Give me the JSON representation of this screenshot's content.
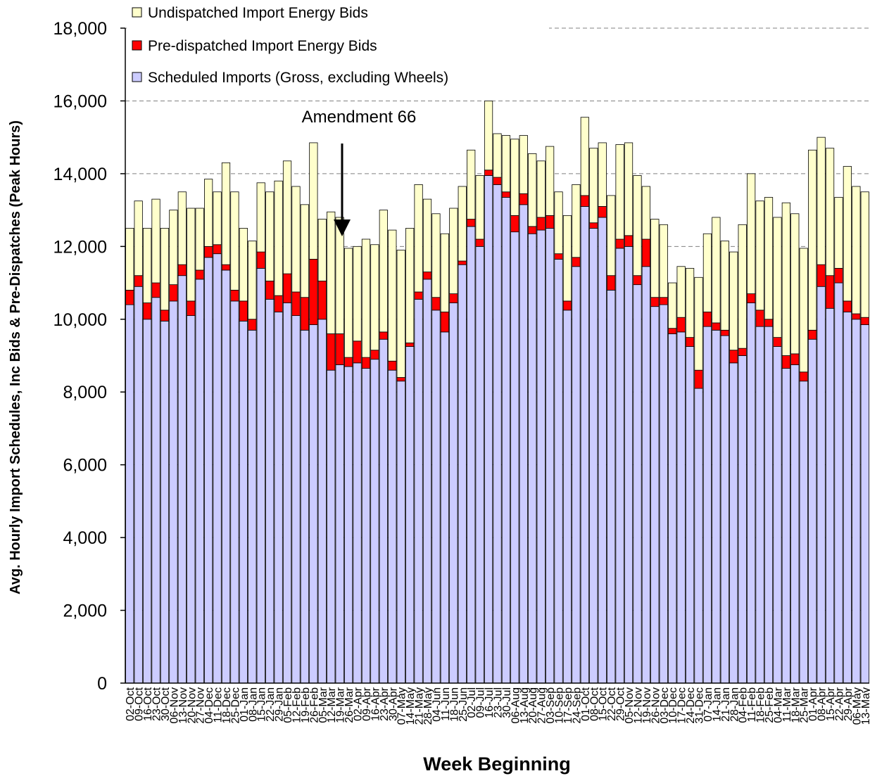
{
  "chart_data": {
    "type": "stacked-bar",
    "y_label": "Avg. Hourly Import Schedules, Inc Bids & Pre-Dispatches (Peak Hours)",
    "x_label": "Week Beginning",
    "annotation": "Amendment 66",
    "categories": [
      "02-Oct",
      "09-Oct",
      "16-Oct",
      "23-Oct",
      "30-Oct",
      "06-Nov",
      "13-Nov",
      "20-Nov",
      "27-Nov",
      "04-Dec",
      "11-Dec",
      "18-Dec",
      "25-Dec",
      "01-Jan",
      "08-Jan",
      "15-Jan",
      "22-Jan",
      "29-Jan",
      "05-Feb",
      "12-Feb",
      "19-Feb",
      "26-Feb",
      "05-Mar",
      "12-Mar",
      "19-Mar",
      "26-Mar",
      "02-Apr",
      "09-Apr",
      "16-Apr",
      "23-Apr",
      "30-Apr",
      "07-May",
      "14-May",
      "21-May",
      "28-May",
      "04-Jun",
      "11-Jun",
      "18-Jun",
      "25-Jun",
      "02-Jul",
      "09-Jul",
      "16-Jul",
      "23-Jul",
      "30-Jul",
      "06-Aug",
      "13-Aug",
      "20-Aug",
      "27-Aug",
      "03-Sep",
      "10-Sep",
      "17-Sep",
      "24-Sep",
      "01-Oct",
      "08-Oct",
      "15-Oct",
      "22-Oct",
      "29-Oct",
      "05-Nov",
      "12-Nov",
      "19-Nov",
      "26-Nov",
      "03-Dec",
      "10-Dec",
      "17-Dec",
      "24-Dec",
      "31-Dec",
      "07-Jan",
      "14-Jan",
      "21-Jan",
      "28-Jan",
      "04-Feb",
      "11-Feb",
      "18-Feb",
      "25-Feb",
      "04-Mar",
      "11-Mar",
      "18-Mar",
      "25-Mar",
      "01-Apr",
      "08-Apr",
      "15-Apr",
      "22-Apr",
      "29-Apr",
      "06-May",
      "13-May"
    ],
    "series": [
      {
        "name": "Scheduled Imports (Gross, excluding Wheels)",
        "color": "#ccccff",
        "values": [
          10400,
          10900,
          10000,
          10600,
          9950,
          10500,
          11200,
          10100,
          11100,
          11700,
          11800,
          11350,
          10500,
          9950,
          9700,
          11400,
          10550,
          10200,
          10450,
          10100,
          9700,
          9850,
          10000,
          8600,
          8750,
          8700,
          8800,
          8650,
          8900,
          9450,
          8600,
          8300,
          9250,
          10550,
          11100,
          10250,
          9650,
          10450,
          11500,
          12550,
          12000,
          13950,
          13700,
          13350,
          12400,
          13150,
          12350,
          12450,
          12500,
          11650,
          10250,
          11450,
          13100,
          12500,
          12800,
          10800,
          11950,
          12000,
          10950,
          11450,
          10350,
          10400,
          9600,
          9650,
          9250,
          8100,
          9800,
          9700,
          9550,
          8800,
          9000,
          10450,
          9800,
          9800,
          9250,
          8650,
          8750,
          8300,
          9450,
          10900,
          10300,
          11000,
          10200,
          10000,
          9850
        ]
      },
      {
        "name": "Pre-dispatched Import Energy Bids",
        "color": "#ff0000",
        "values": [
          400,
          300,
          450,
          400,
          300,
          450,
          300,
          400,
          250,
          300,
          250,
          150,
          300,
          550,
          300,
          450,
          500,
          450,
          800,
          650,
          900,
          1800,
          1050,
          1000,
          850,
          250,
          600,
          300,
          250,
          200,
          250,
          100,
          100,
          200,
          200,
          350,
          550,
          250,
          100,
          200,
          200,
          150,
          200,
          150,
          450,
          300,
          200,
          350,
          350,
          150,
          250,
          250,
          300,
          150,
          300,
          400,
          250,
          300,
          250,
          750,
          250,
          200,
          150,
          400,
          250,
          500,
          400,
          200,
          150,
          350,
          200,
          250,
          450,
          200,
          250,
          350,
          300,
          250,
          250,
          600,
          900,
          400,
          300,
          150,
          200
        ]
      },
      {
        "name": "Undispatched Import Energy Bids",
        "color": "#ffffcc",
        "values": [
          1700,
          2050,
          2050,
          2300,
          2250,
          2050,
          2000,
          2550,
          1700,
          1850,
          1450,
          2800,
          2700,
          2000,
          2150,
          1900,
          2450,
          3150,
          3100,
          2900,
          2550,
          3200,
          1700,
          3350,
          3200,
          3000,
          2600,
          3250,
          2900,
          3350,
          3600,
          3500,
          3150,
          2950,
          2000,
          2300,
          2150,
          2350,
          2050,
          1900,
          1750,
          1900,
          1200,
          1550,
          2100,
          1600,
          2000,
          1550,
          1900,
          1700,
          2350,
          2000,
          2150,
          2050,
          1750,
          2200,
          2600,
          2550,
          2750,
          1450,
          2150,
          2000,
          1250,
          1400,
          1900,
          2550,
          2150,
          2900,
          2450,
          2700,
          3400,
          3300,
          3000,
          3350,
          3300,
          4200,
          3850,
          3400,
          4950,
          3500,
          3500,
          1950,
          3700,
          3500,
          3450
        ]
      }
    ],
    "ylim": [
      0,
      18000
    ],
    "yticks": [
      0,
      {
        "value": 2000,
        "label": "2,000"
      },
      {
        "value": 4000,
        "label": "4,000"
      },
      {
        "value": 6000,
        "label": "6,000"
      },
      {
        "value": 8000,
        "label": "8,000"
      },
      {
        "value": 10000,
        "label": "10,000"
      },
      {
        "value": 12000,
        "label": "12,000"
      },
      {
        "value": 14000,
        "label": "14,000"
      },
      {
        "value": 16000,
        "label": "16,000"
      },
      {
        "value": 18000,
        "label": "18,000"
      }
    ],
    "grid": true
  }
}
